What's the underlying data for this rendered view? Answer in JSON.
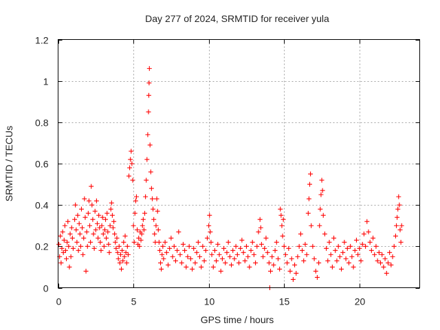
{
  "chart_data": {
    "type": "scatter",
    "title": "Day 277 of 2024, SRMTID for receiver yula",
    "xlabel": "GPS time / hours",
    "ylabel": "SRMTID / TECUs",
    "xlim": [
      0,
      24
    ],
    "ylim": [
      0,
      1.2
    ],
    "x_ticks": [
      0,
      5,
      10,
      15,
      20
    ],
    "x_tick_labels": [
      "0",
      "5",
      "10",
      "15",
      "20"
    ],
    "y_ticks": [
      0,
      0.2,
      0.4,
      0.6,
      0.8,
      1.0,
      1.2
    ],
    "y_tick_labels": [
      "0",
      "0.2",
      "0.4",
      "0.6",
      "0.8",
      "1",
      "1.2"
    ],
    "grid": true,
    "marker": "+",
    "color": "#ff0000",
    "series": [
      {
        "name": "SRMTID",
        "points": [
          [
            0.05,
            0.21
          ],
          [
            0.1,
            0.15
          ],
          [
            0.15,
            0.25
          ],
          [
            0.2,
            0.12
          ],
          [
            0.25,
            0.19
          ],
          [
            0.3,
            0.27
          ],
          [
            0.35,
            0.17
          ],
          [
            0.4,
            0.23
          ],
          [
            0.45,
            0.3
          ],
          [
            0.5,
            0.18
          ],
          [
            0.55,
            0.14
          ],
          [
            0.6,
            0.22
          ],
          [
            0.65,
            0.32
          ],
          [
            0.7,
            0.2
          ],
          [
            0.75,
            0.1
          ],
          [
            0.8,
            0.26
          ],
          [
            0.85,
            0.15
          ],
          [
            0.9,
            0.29
          ],
          [
            0.95,
            0.24
          ],
          [
            1.0,
            0.19
          ],
          [
            1.1,
            0.33
          ],
          [
            1.15,
            0.4
          ],
          [
            1.2,
            0.28
          ],
          [
            1.25,
            0.22
          ],
          [
            1.3,
            0.35
          ],
          [
            1.35,
            0.18
          ],
          [
            1.4,
            0.31
          ],
          [
            1.45,
            0.26
          ],
          [
            1.5,
            0.2
          ],
          [
            1.55,
            0.38
          ],
          [
            1.6,
            0.29
          ],
          [
            1.65,
            0.16
          ],
          [
            1.7,
            0.24
          ],
          [
            1.75,
            0.43
          ],
          [
            1.8,
            0.34
          ],
          [
            1.85,
            0.08
          ],
          [
            1.9,
            0.27
          ],
          [
            1.95,
            0.2
          ],
          [
            2.0,
            0.36
          ],
          [
            2.05,
            0.42
          ],
          [
            2.1,
            0.3
          ],
          [
            2.15,
            0.22
          ],
          [
            2.2,
            0.49
          ],
          [
            2.25,
            0.4
          ],
          [
            2.3,
            0.33
          ],
          [
            2.35,
            0.26
          ],
          [
            2.4,
            0.19
          ],
          [
            2.45,
            0.37
          ],
          [
            2.5,
            0.28
          ],
          [
            2.55,
            0.42
          ],
          [
            2.6,
            0.31
          ],
          [
            2.65,
            0.24
          ],
          [
            2.7,
            0.35
          ],
          [
            2.75,
            0.29
          ],
          [
            2.8,
            0.22
          ],
          [
            2.85,
            0.18
          ],
          [
            2.9,
            0.3
          ],
          [
            2.95,
            0.34
          ],
          [
            3.0,
            0.26
          ],
          [
            3.05,
            0.2
          ],
          [
            3.1,
            0.28
          ],
          [
            3.15,
            0.33
          ],
          [
            3.2,
            0.24
          ],
          [
            3.25,
            0.36
          ],
          [
            3.3,
            0.27
          ],
          [
            3.35,
            0.21
          ],
          [
            3.4,
            0.17
          ],
          [
            3.45,
            0.3
          ],
          [
            3.5,
            0.38
          ],
          [
            3.55,
            0.41
          ],
          [
            3.6,
            0.35
          ],
          [
            3.65,
            0.29
          ],
          [
            3.7,
            0.32
          ],
          [
            3.75,
            0.26
          ],
          [
            3.8,
            0.22
          ],
          [
            3.85,
            0.19
          ],
          [
            3.9,
            0.24
          ],
          [
            3.95,
            0.17
          ],
          [
            4.0,
            0.14
          ],
          [
            4.05,
            0.2
          ],
          [
            4.1,
            0.12
          ],
          [
            4.15,
            0.16
          ],
          [
            4.2,
            0.09
          ],
          [
            4.25,
            0.18
          ],
          [
            4.3,
            0.13
          ],
          [
            4.35,
            0.22
          ],
          [
            4.4,
            0.15
          ],
          [
            4.45,
            0.25
          ],
          [
            4.5,
            0.17
          ],
          [
            4.55,
            0.12
          ],
          [
            4.6,
            0.2
          ],
          [
            4.65,
            0.16
          ],
          [
            4.7,
            0.54
          ],
          [
            4.75,
            0.58
          ],
          [
            4.8,
            0.62
          ],
          [
            4.85,
            0.66
          ],
          [
            4.9,
            0.6
          ],
          [
            4.95,
            0.52
          ],
          [
            5.0,
            0.3
          ],
          [
            5.05,
            0.22
          ],
          [
            5.1,
            0.36
          ],
          [
            5.15,
            0.42
          ],
          [
            5.2,
            0.44
          ],
          [
            5.25,
            0.28
          ],
          [
            5.3,
            0.21
          ],
          [
            5.35,
            0.24
          ],
          [
            5.4,
            0.2
          ],
          [
            5.45,
            0.27
          ],
          [
            5.5,
            0.23
          ],
          [
            5.55,
            0.26
          ],
          [
            5.6,
            0.3
          ],
          [
            5.65,
            0.33
          ],
          [
            5.7,
            0.28
          ],
          [
            5.75,
            0.36
          ],
          [
            5.8,
            0.44
          ],
          [
            5.85,
            0.52
          ],
          [
            5.9,
            0.62
          ],
          [
            5.95,
            0.74
          ],
          [
            6.0,
            0.85
          ],
          [
            6.02,
            0.93
          ],
          [
            6.04,
            0.99
          ],
          [
            6.06,
            1.06
          ],
          [
            6.1,
            0.69
          ],
          [
            6.15,
            0.56
          ],
          [
            6.2,
            0.48
          ],
          [
            6.25,
            0.43
          ],
          [
            6.3,
            0.38
          ],
          [
            6.35,
            0.33
          ],
          [
            6.4,
            0.26
          ],
          [
            6.45,
            0.22
          ],
          [
            6.5,
            0.3
          ],
          [
            6.55,
            0.43
          ],
          [
            6.6,
            0.37
          ],
          [
            6.65,
            0.28
          ],
          [
            6.7,
            0.22
          ],
          [
            6.75,
            0.18
          ],
          [
            6.8,
            0.12
          ],
          [
            6.85,
            0.09
          ],
          [
            6.9,
            0.16
          ],
          [
            6.95,
            0.2
          ],
          [
            7.0,
            0.14
          ],
          [
            7.1,
            0.22
          ],
          [
            7.2,
            0.17
          ],
          [
            7.3,
            0.11
          ],
          [
            7.4,
            0.19
          ],
          [
            7.5,
            0.24
          ],
          [
            7.6,
            0.15
          ],
          [
            7.7,
            0.2
          ],
          [
            7.8,
            0.13
          ],
          [
            7.9,
            0.18
          ],
          [
            8.0,
            0.27
          ],
          [
            8.1,
            0.16
          ],
          [
            8.2,
            0.12
          ],
          [
            8.3,
            0.21
          ],
          [
            8.4,
            0.18
          ],
          [
            8.5,
            0.1
          ],
          [
            8.6,
            0.15
          ],
          [
            8.7,
            0.2
          ],
          [
            8.8,
            0.14
          ],
          [
            8.9,
            0.09
          ],
          [
            9.0,
            0.19
          ],
          [
            9.1,
            0.12
          ],
          [
            9.2,
            0.17
          ],
          [
            9.3,
            0.22
          ],
          [
            9.4,
            0.15
          ],
          [
            9.5,
            0.1
          ],
          [
            9.6,
            0.2
          ],
          [
            9.7,
            0.13
          ],
          [
            9.8,
            0.18
          ],
          [
            9.9,
            0.24
          ],
          [
            10.0,
            0.3
          ],
          [
            10.05,
            0.35
          ],
          [
            10.1,
            0.27
          ],
          [
            10.15,
            0.22
          ],
          [
            10.2,
            0.16
          ],
          [
            10.3,
            0.1
          ],
          [
            10.4,
            0.18
          ],
          [
            10.5,
            0.13
          ],
          [
            10.6,
            0.21
          ],
          [
            10.7,
            0.16
          ],
          [
            10.8,
            0.08
          ],
          [
            10.9,
            0.14
          ],
          [
            11.0,
            0.19
          ],
          [
            11.1,
            0.12
          ],
          [
            11.2,
            0.17
          ],
          [
            11.3,
            0.22
          ],
          [
            11.4,
            0.15
          ],
          [
            11.5,
            0.11
          ],
          [
            11.6,
            0.18
          ],
          [
            11.7,
            0.14
          ],
          [
            11.8,
            0.2
          ],
          [
            11.9,
            0.16
          ],
          [
            12.0,
            0.12
          ],
          [
            12.1,
            0.19
          ],
          [
            12.2,
            0.23
          ],
          [
            12.3,
            0.17
          ],
          [
            12.4,
            0.13
          ],
          [
            12.5,
            0.2
          ],
          [
            12.6,
            0.15
          ],
          [
            12.7,
            0.1
          ],
          [
            12.8,
            0.18
          ],
          [
            12.9,
            0.22
          ],
          [
            13.0,
            0.16
          ],
          [
            13.1,
            0.12
          ],
          [
            13.2,
            0.2
          ],
          [
            13.3,
            0.27
          ],
          [
            13.4,
            0.33
          ],
          [
            13.45,
            0.29
          ],
          [
            13.5,
            0.21
          ],
          [
            13.6,
            0.15
          ],
          [
            13.7,
            0.19
          ],
          [
            13.8,
            0.24
          ],
          [
            13.9,
            0.17
          ],
          [
            14.0,
            0.12
          ],
          [
            14.05,
            0.0
          ],
          [
            14.1,
            0.08
          ],
          [
            14.2,
            0.15
          ],
          [
            14.3,
            0.11
          ],
          [
            14.4,
            0.18
          ],
          [
            14.5,
            0.22
          ],
          [
            14.6,
            0.14
          ],
          [
            14.7,
            0.09
          ],
          [
            14.75,
            0.38
          ],
          [
            14.8,
            0.35
          ],
          [
            14.85,
            0.3
          ],
          [
            14.9,
            0.25
          ],
          [
            14.95,
            0.33
          ],
          [
            15.0,
            0.2
          ],
          [
            15.1,
            0.16
          ],
          [
            15.2,
            0.12
          ],
          [
            15.3,
            0.19
          ],
          [
            15.4,
            0.08
          ],
          [
            15.5,
            0.14
          ],
          [
            15.6,
            0.04
          ],
          [
            15.7,
            0.11
          ],
          [
            15.8,
            0.07
          ],
          [
            15.9,
            0.15
          ],
          [
            16.0,
            0.2
          ],
          [
            16.1,
            0.26
          ],
          [
            16.2,
            0.18
          ],
          [
            16.3,
            0.13
          ],
          [
            16.4,
            0.21
          ],
          [
            16.5,
            0.16
          ],
          [
            16.6,
            0.36
          ],
          [
            16.65,
            0.43
          ],
          [
            16.7,
            0.5
          ],
          [
            16.75,
            0.55
          ],
          [
            16.8,
            0.3
          ],
          [
            16.9,
            0.2
          ],
          [
            17.0,
            0.14
          ],
          [
            17.1,
            0.08
          ],
          [
            17.2,
            0.05
          ],
          [
            17.3,
            0.12
          ],
          [
            17.35,
            0.3
          ],
          [
            17.4,
            0.38
          ],
          [
            17.45,
            0.45
          ],
          [
            17.5,
            0.52
          ],
          [
            17.55,
            0.47
          ],
          [
            17.6,
            0.35
          ],
          [
            17.7,
            0.26
          ],
          [
            17.8,
            0.19
          ],
          [
            17.9,
            0.13
          ],
          [
            18.0,
            0.22
          ],
          [
            18.1,
            0.16
          ],
          [
            18.2,
            0.1
          ],
          [
            18.3,
            0.24
          ],
          [
            18.4,
            0.18
          ],
          [
            18.5,
            0.13
          ],
          [
            18.6,
            0.2
          ],
          [
            18.7,
            0.15
          ],
          [
            18.8,
            0.09
          ],
          [
            18.9,
            0.17
          ],
          [
            19.0,
            0.22
          ],
          [
            19.1,
            0.14
          ],
          [
            19.2,
            0.19
          ],
          [
            19.3,
            0.12
          ],
          [
            19.4,
            0.2
          ],
          [
            19.5,
            0.15
          ],
          [
            19.6,
            0.1
          ],
          [
            19.7,
            0.18
          ],
          [
            19.8,
            0.23
          ],
          [
            19.9,
            0.16
          ],
          [
            20.0,
            0.19
          ],
          [
            20.1,
            0.13
          ],
          [
            20.2,
            0.21
          ],
          [
            20.3,
            0.26
          ],
          [
            20.4,
            0.2
          ],
          [
            20.5,
            0.32
          ],
          [
            20.6,
            0.27
          ],
          [
            20.7,
            0.22
          ],
          [
            20.8,
            0.18
          ],
          [
            20.9,
            0.24
          ],
          [
            21.0,
            0.16
          ],
          [
            21.1,
            0.2
          ],
          [
            21.2,
            0.13
          ],
          [
            21.3,
            0.17
          ],
          [
            21.4,
            0.12
          ],
          [
            21.5,
            0.16
          ],
          [
            21.6,
            0.1
          ],
          [
            21.7,
            0.14
          ],
          [
            21.8,
            0.07
          ],
          [
            21.9,
            0.12
          ],
          [
            22.0,
            0.17
          ],
          [
            22.1,
            0.11
          ],
          [
            22.2,
            0.15
          ],
          [
            22.3,
            0.2
          ],
          [
            22.4,
            0.25
          ],
          [
            22.45,
            0.3
          ],
          [
            22.5,
            0.34
          ],
          [
            22.55,
            0.38
          ],
          [
            22.6,
            0.44
          ],
          [
            22.65,
            0.4
          ],
          [
            22.7,
            0.28
          ],
          [
            22.75,
            0.22
          ],
          [
            22.8,
            0.3
          ]
        ]
      }
    ]
  }
}
